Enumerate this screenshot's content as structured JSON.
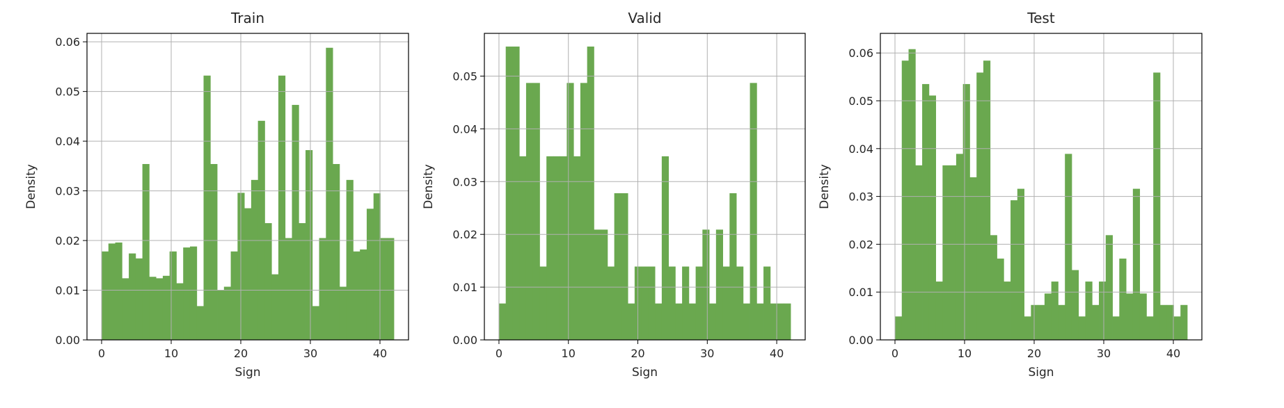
{
  "chart_data": [
    {
      "type": "bar",
      "title": "Train",
      "xlabel": "Sign",
      "ylabel": "Density",
      "xlim": [
        -2.1,
        44.1
      ],
      "ylim": [
        0,
        0.0617
      ],
      "xticks": [
        0,
        10,
        20,
        30,
        40
      ],
      "yticks": [
        0.0,
        0.01,
        0.02,
        0.03,
        0.04,
        0.05,
        0.06
      ],
      "ytick_labels": [
        "0.00",
        "0.01",
        "0.02",
        "0.03",
        "0.04",
        "0.05",
        "0.06"
      ],
      "bin_range": [
        0,
        42
      ],
      "grid": true,
      "color": "#6aa84f",
      "values": [
        0.0178,
        0.0194,
        0.0196,
        0.0124,
        0.0174,
        0.0164,
        0.0354,
        0.0127,
        0.0124,
        0.0129,
        0.0178,
        0.0114,
        0.0186,
        0.0188,
        0.0068,
        0.0532,
        0.0354,
        0.01,
        0.0107,
        0.0178,
        0.0296,
        0.0265,
        0.0322,
        0.0441,
        0.0235,
        0.0132,
        0.0532,
        0.0205,
        0.0473,
        0.0235,
        0.0382,
        0.0068,
        0.0205,
        0.0588,
        0.0354,
        0.0107,
        0.0322,
        0.0178,
        0.0182,
        0.0264,
        0.0295,
        0.0205,
        0.0205
      ]
    },
    {
      "type": "bar",
      "title": "Valid",
      "xlabel": "Sign",
      "ylabel": "Density",
      "xlim": [
        -2.1,
        44.1
      ],
      "ylim": [
        0,
        0.0581
      ],
      "xticks": [
        0,
        10,
        20,
        30,
        40
      ],
      "yticks": [
        0.0,
        0.01,
        0.02,
        0.03,
        0.04,
        0.05
      ],
      "ytick_labels": [
        "0.00",
        "0.01",
        "0.02",
        "0.03",
        "0.04",
        "0.05"
      ],
      "bin_range": [
        0,
        42
      ],
      "grid": true,
      "color": "#6aa84f",
      "values": [
        0.0069,
        0.0556,
        0.0556,
        0.0348,
        0.0487,
        0.0487,
        0.0139,
        0.0348,
        0.0348,
        0.0348,
        0.0487,
        0.0348,
        0.0487,
        0.0556,
        0.0209,
        0.0209,
        0.0139,
        0.0278,
        0.0278,
        0.0069,
        0.0139,
        0.0139,
        0.0139,
        0.0069,
        0.0348,
        0.0139,
        0.0069,
        0.0139,
        0.0069,
        0.0139,
        0.0209,
        0.0069,
        0.0209,
        0.0139,
        0.0278,
        0.0139,
        0.0069,
        0.0487,
        0.0069,
        0.0139,
        0.0069,
        0.0069,
        0.0069
      ]
    },
    {
      "type": "bar",
      "title": "Test",
      "xlabel": "Sign",
      "ylabel": "Density",
      "xlim": [
        -2.1,
        44.1
      ],
      "ylim": [
        0,
        0.0641
      ],
      "xticks": [
        0,
        10,
        20,
        30,
        40
      ],
      "yticks": [
        0.0,
        0.01,
        0.02,
        0.03,
        0.04,
        0.05,
        0.06
      ],
      "ytick_labels": [
        "0.00",
        "0.01",
        "0.02",
        "0.03",
        "0.04",
        "0.05",
        "0.06"
      ],
      "bin_range": [
        0,
        42
      ],
      "grid": true,
      "color": "#6aa84f",
      "values": [
        0.0049,
        0.0584,
        0.0608,
        0.0365,
        0.0535,
        0.0511,
        0.0122,
        0.0365,
        0.0365,
        0.0389,
        0.0535,
        0.034,
        0.0559,
        0.0584,
        0.0219,
        0.017,
        0.0122,
        0.0292,
        0.0316,
        0.0049,
        0.0073,
        0.0073,
        0.0097,
        0.0122,
        0.0073,
        0.0389,
        0.0146,
        0.0049,
        0.0122,
        0.0073,
        0.0122,
        0.0219,
        0.0049,
        0.017,
        0.0097,
        0.0316,
        0.0097,
        0.0049,
        0.0559,
        0.0073,
        0.0073,
        0.0049,
        0.0073
      ]
    }
  ]
}
